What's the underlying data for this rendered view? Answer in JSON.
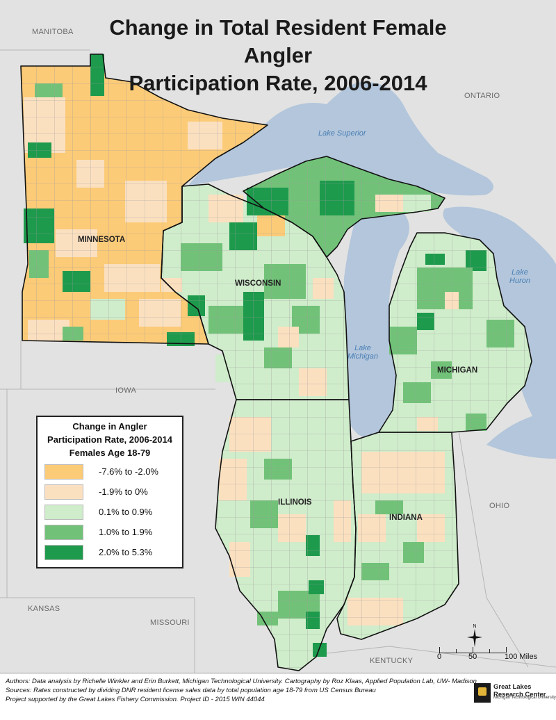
{
  "title": {
    "line1": "Change in Total Resident Female Angler",
    "line2": "Participation Rate, 2006-2014"
  },
  "states": {
    "minnesota": "MINNESOTA",
    "wisconsin": "WISCONSIN",
    "michigan": "MICHIGAN",
    "illinois": "ILLINOIS",
    "indiana": "INDIANA"
  },
  "context_labels": {
    "manitoba": "MANITOBA",
    "ontario": "ONTARIO",
    "iowa": "IOWA",
    "ohio": "OHIO",
    "kansas": "KANSAS",
    "missouri": "MISSOURI",
    "kentucky": "KENTUCKY"
  },
  "lakes": {
    "superior": "Lake Superior",
    "michigan_1": "Lake",
    "michigan_2": "Michigan",
    "huron_1": "Lake",
    "huron_2": "Huron"
  },
  "legend": {
    "title1": "Change in Angler",
    "title2": "Participation Rate, 2006-2014",
    "title3": "Females Age 18-79",
    "classes": [
      {
        "label": "-7.6% to -2.0%",
        "color": "#fccb78"
      },
      {
        "label": "-1.9% to 0%",
        "color": "#fbe0c0"
      },
      {
        "label": "0.1% to 0.9%",
        "color": "#cfeccb"
      },
      {
        "label": "1.0% to 1.9%",
        "color": "#71c278"
      },
      {
        "label": "2.0% to 5.3%",
        "color": "#1e9a4d"
      }
    ]
  },
  "colors": {
    "water": "#b3c6db",
    "land_other": "#e2e2e2",
    "county_border": "#9a9a9a",
    "state_border": "#111111"
  },
  "scale": {
    "zero": "0",
    "mid": "50",
    "end": "100 Miles"
  },
  "compass": {
    "north": "N"
  },
  "footer": {
    "line1": "Authors: Data analysis by Richelle Winkler and Erin Burkett, Michigan Technological University. Cartography by Roz Klaas, Applied Population Lab, UW- Madison",
    "line2": "Sources: Rates constructed by dividing DNR resident license sales data by total population age 18-79 from US Census Bureau",
    "line3": "Project supported by the Great Lakes Fishery Commission. Project ID - 2015 WIN 44044"
  },
  "logo": {
    "name": "Great Lakes Research Center",
    "subtitle": "Michigan Technological University"
  }
}
